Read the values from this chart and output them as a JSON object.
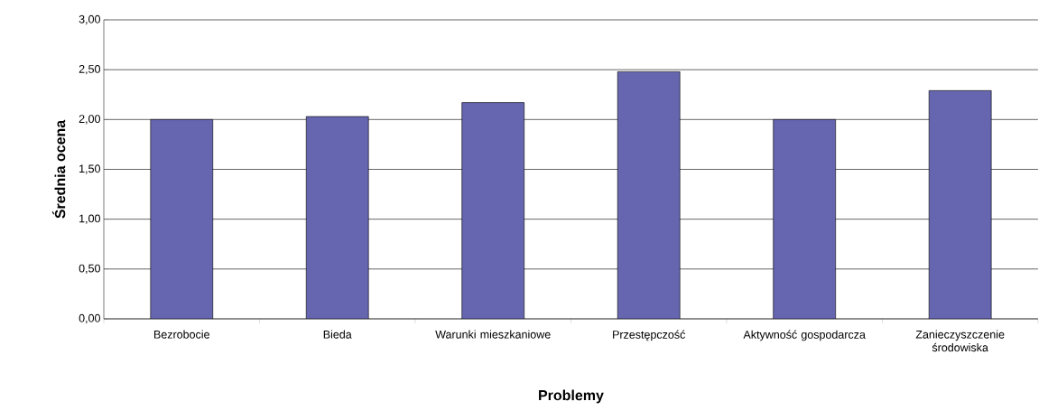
{
  "chart_data": {
    "type": "bar",
    "xlabel": "Problemy",
    "ylabel": "Średnia ocena",
    "categories": [
      "Bezrobocie",
      "Bieda",
      "Warunki mieszkaniowe",
      "Przestępczość",
      "Aktywność gospodarcza",
      "Zanieczyszczenie środowiska"
    ],
    "values": [
      2.0,
      2.03,
      2.17,
      2.48,
      2.0,
      2.29
    ],
    "color": "#6565b0",
    "ylim": [
      0,
      3
    ],
    "yticks": [
      {
        "value": 0,
        "label": "0,00"
      },
      {
        "value": 0.5,
        "label": "0,50"
      },
      {
        "value": 1,
        "label": "1,00"
      },
      {
        "value": 1.5,
        "label": "1,50"
      },
      {
        "value": 2,
        "label": "2,00"
      },
      {
        "value": 2.5,
        "label": "2,50"
      },
      {
        "value": 3,
        "label": "3,00"
      }
    ],
    "grid": "y"
  }
}
